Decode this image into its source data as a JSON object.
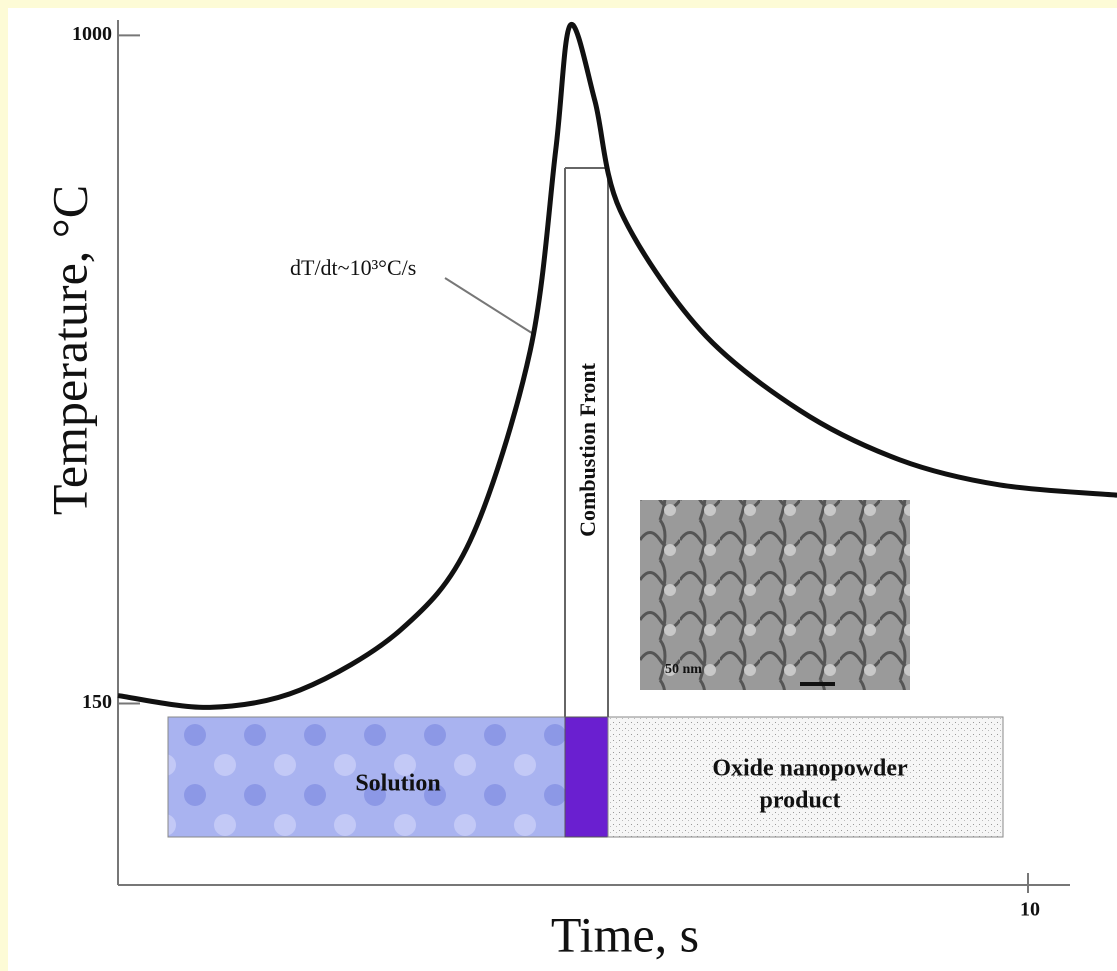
{
  "chart_data": {
    "type": "line",
    "x_label": "Time, s",
    "y_label": "Temperature, °C",
    "x": [
      0,
      1.01,
      2.0,
      3.1,
      3.87,
      4.53,
      4.81,
      4.97,
      5.24,
      5.52,
      6.4,
      7.49,
      8.59,
      9.69,
      10.98
    ],
    "series": [
      {
        "color": "#111111",
        "values": [
          160,
          145,
          167,
          243,
          357,
          599,
          854,
          1013,
          917,
          777,
          625,
          523,
          460,
          428,
          415
        ]
      }
    ],
    "xlim": [
      0,
      11
    ],
    "ylim": [
      -81,
      1045
    ],
    "xticks": [
      10
    ],
    "yticks": [
      150,
      1000
    ],
    "annotations": {
      "rate": "dT/dt~10³°C/s",
      "front": "Combustion Front",
      "solution": "Solution",
      "product": [
        "Oxide nanopowder",
        "product"
      ],
      "scale": "50 nm"
    }
  }
}
